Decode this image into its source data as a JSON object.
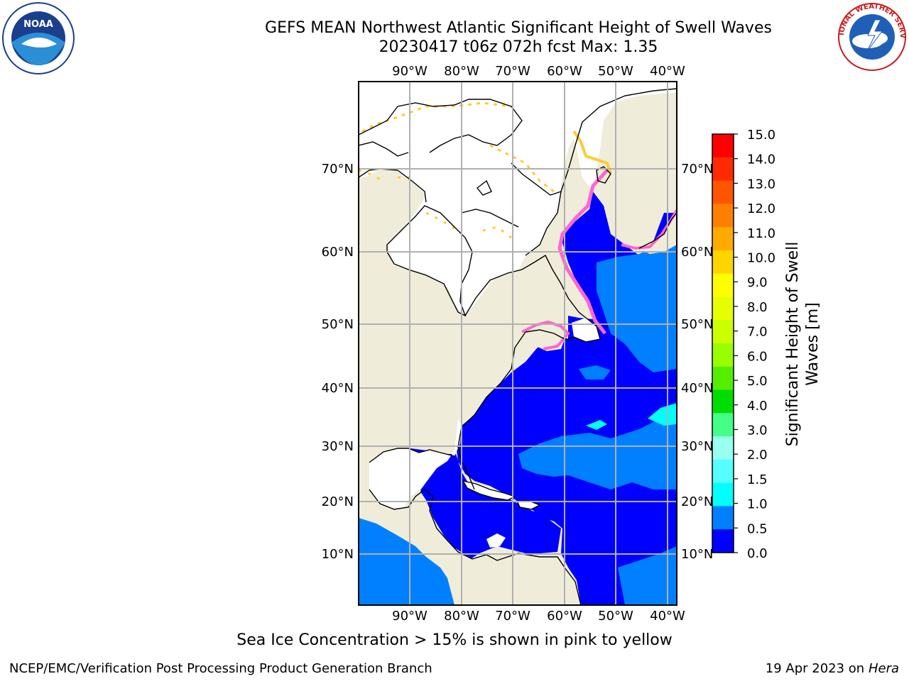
{
  "header": {
    "title_line1": "GEFS MEAN Northwest Atlantic Significant Height of Swell Waves",
    "title_line2": "20230417 t06z 072h fcst   Max: 1.35",
    "left_logo": "noaa-logo",
    "right_logo": "national-weather-service-logo",
    "left_logo_text": "NOAA",
    "right_logo_text": "NATIONAL WEATHER SERVICE"
  },
  "map": {
    "lon_ticks": [
      "90°W",
      "80°W",
      "70°W",
      "60°W",
      "50°W",
      "40°W"
    ],
    "lat_ticks": [
      "70°N",
      "60°N",
      "50°N",
      "40°N",
      "30°N",
      "20°N",
      "10°N"
    ],
    "colors": {
      "land": "#efedd9",
      "ice_white": "#ffffff",
      "ocean_0_05": "#0000ff",
      "ocean_05_1": "#0080ff",
      "ocean_1_15": "#00ffff",
      "ice_pink": "#ff66cc",
      "ice_yellow": "#ffcc33",
      "grid": "#b0b0b0"
    }
  },
  "colorbar": {
    "label_line1": "Significant Height of Swell",
    "label_line2": "Waves [m]",
    "ticks": [
      "15.0",
      "14.0",
      "13.0",
      "12.0",
      "11.0",
      "10.0",
      "9.0",
      "8.0",
      "7.0",
      "6.0",
      "5.0",
      "4.0",
      "3.0",
      "2.0",
      "1.5",
      "1.0",
      "0.5",
      "0.0"
    ],
    "bands": [
      "#ff0000",
      "#ff2a00",
      "#ff5500",
      "#ff8000",
      "#ffaa00",
      "#ffd400",
      "#ffff00",
      "#e6ff00",
      "#ccff00",
      "#99ff00",
      "#55ee00",
      "#00dd00",
      "#44ff88",
      "#99ffee",
      "#55ffff",
      "#00ffff",
      "#0080ff",
      "#0000ff"
    ]
  },
  "caption": "Sea Ice Concentration > 15% is shown in pink to yellow",
  "footer": {
    "left": "NCEP/EMC/Verification Post Processing Product Generation Branch",
    "right_prefix": "19 Apr 2023 on ",
    "right_host": "Hera"
  }
}
